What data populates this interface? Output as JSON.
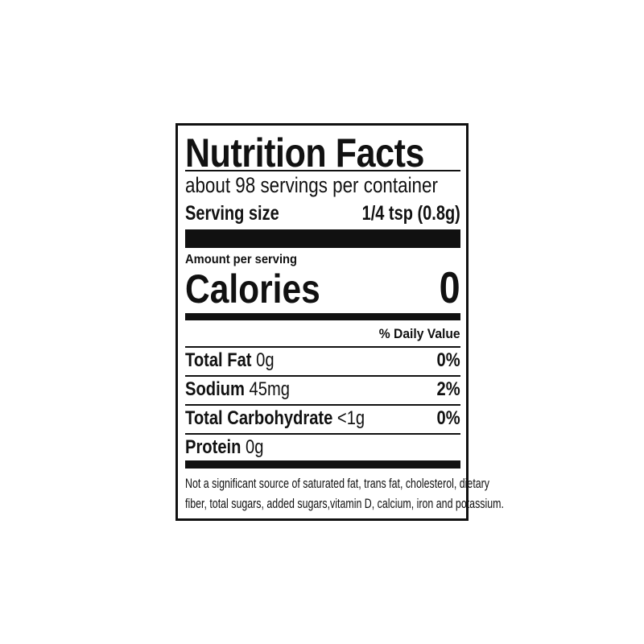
{
  "title": "Nutrition Facts",
  "servings_per_container": "about 98 servings per container",
  "serving_size": {
    "label": "Serving size",
    "value": "1/4 tsp (0.8g)"
  },
  "amount_per_serving": "Amount per serving",
  "calories": {
    "label": "Calories",
    "value": "0"
  },
  "daily_value_header": "% Daily Value",
  "nutrients": [
    {
      "name": "Total Fat",
      "amount": "0g",
      "dv": "0%"
    },
    {
      "name": "Sodium",
      "amount": "45mg",
      "dv": "2%"
    },
    {
      "name": "Total Carbohydrate",
      "amount": "<1g",
      "dv": "0%"
    },
    {
      "name": "Protein",
      "amount": "0g",
      "dv": ""
    }
  ],
  "footnote_line1": "Not a significant source of saturated fat, trans fat, cholesterol, dietary",
  "footnote_line2": "fiber, total sugars, added sugars,vitamin D, calcium, iron and potassium."
}
